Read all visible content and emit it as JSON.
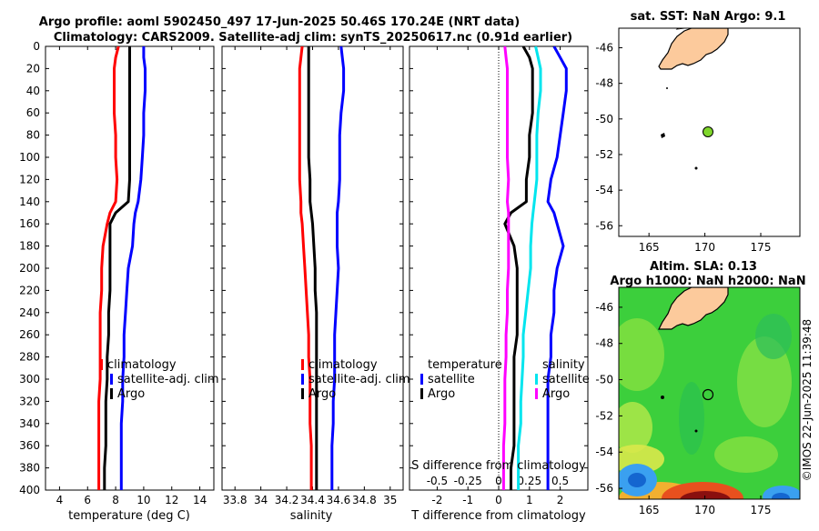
{
  "title": {
    "line1": "Argo profile: aoml 5902450_497 17-Jun-2025 50.46S 170.24E (NRT data)",
    "line2": "Climatology: CARS2009. Satellite-adj clim: synTS_20250617.nc (0.91d earlier)"
  },
  "sst_map": {
    "title": "sat. SST: NaN Argo: 9.1",
    "xticks": [
      "165",
      "170",
      "175"
    ],
    "yticks": [
      "-46",
      "-48",
      "-50",
      "-52",
      "-54",
      "-56"
    ],
    "land_color": "#fcca9c",
    "argo_marker_color": "#7fd62b"
  },
  "sla_map": {
    "title1": "Altim. SLA: 0.13",
    "title2": "Argo h1000: NaN h2000: NaN",
    "xticks": [
      "165",
      "170",
      "175"
    ],
    "yticks": [
      "-46",
      "-48",
      "-50",
      "-52",
      "-54",
      "-56"
    ]
  },
  "watermark": "©IMOS 22-Jun-2025 11:39:48",
  "chart_data": [
    {
      "type": "line",
      "panel": "temperature",
      "xlabel": "temperature (deg C)",
      "ylabel": "",
      "xlim": [
        3,
        15
      ],
      "ylim": [
        400,
        0
      ],
      "xticks": [
        "4",
        "6",
        "8",
        "10",
        "12",
        "14"
      ],
      "xtick_values": [
        4,
        6,
        8,
        10,
        12,
        14
      ],
      "yticks": [
        "0",
        "20",
        "40",
        "60",
        "80",
        "100",
        "120",
        "140",
        "160",
        "180",
        "200",
        "220",
        "240",
        "260",
        "280",
        "300",
        "320",
        "340",
        "360",
        "380",
        "400"
      ],
      "depth": [
        0,
        10,
        20,
        40,
        60,
        80,
        100,
        120,
        140,
        150,
        160,
        180,
        200,
        220,
        240,
        260,
        280,
        300,
        320,
        340,
        360,
        380,
        400
      ],
      "series": [
        {
          "name": "climatology",
          "color": "#ff0000",
          "values": [
            8.2,
            8.0,
            7.9,
            7.9,
            7.9,
            8.0,
            8.0,
            8.1,
            8.0,
            7.6,
            7.4,
            7.1,
            7.0,
            7.0,
            6.9,
            6.9,
            6.9,
            6.9,
            6.8,
            6.8,
            6.8,
            6.8,
            6.8
          ]
        },
        {
          "name": "satellite-adj. clim",
          "color": "#0000ff",
          "values": [
            10.0,
            10.0,
            10.1,
            10.1,
            10.0,
            10.0,
            9.9,
            9.8,
            9.6,
            9.4,
            9.3,
            9.2,
            8.9,
            8.8,
            8.7,
            8.6,
            8.6,
            8.5,
            8.5,
            8.4,
            8.4,
            8.4,
            8.4
          ]
        },
        {
          "name": "Argo",
          "color": "#000000",
          "values": [
            9.0,
            9.0,
            9.0,
            9.0,
            9.0,
            9.0,
            9.0,
            9.0,
            8.9,
            8.0,
            7.6,
            7.6,
            7.6,
            7.6,
            7.5,
            7.5,
            7.4,
            7.4,
            7.3,
            7.3,
            7.3,
            7.2,
            7.2
          ]
        }
      ],
      "legend": [
        "climatology",
        "satellite-adj. clim",
        "Argo"
      ],
      "legend_position": "lower-right"
    },
    {
      "type": "line",
      "panel": "salinity",
      "xlabel": "salinity",
      "xlim": [
        33.7,
        35.1
      ],
      "ylim": [
        400,
        0
      ],
      "xticks": [
        "33.8",
        "34",
        "34.2",
        "34.4",
        "34.6",
        "34.8",
        "35"
      ],
      "xtick_values": [
        33.8,
        34.0,
        34.2,
        34.4,
        34.6,
        34.8,
        35.0
      ],
      "depth": [
        0,
        10,
        20,
        40,
        60,
        80,
        100,
        120,
        140,
        150,
        160,
        180,
        200,
        220,
        240,
        260,
        280,
        300,
        320,
        340,
        360,
        380,
        400
      ],
      "series": [
        {
          "name": "climatology",
          "color": "#ff0000",
          "values": [
            34.32,
            34.31,
            34.3,
            34.3,
            34.3,
            34.3,
            34.3,
            34.3,
            34.31,
            34.31,
            34.32,
            34.33,
            34.34,
            34.35,
            34.36,
            34.37,
            34.37,
            34.38,
            34.38,
            34.38,
            34.39,
            34.39,
            34.39
          ]
        },
        {
          "name": "satellite-adj. clim",
          "color": "#0000ff",
          "values": [
            34.62,
            34.63,
            34.64,
            34.64,
            34.62,
            34.61,
            34.61,
            34.61,
            34.6,
            34.59,
            34.59,
            34.59,
            34.6,
            34.59,
            34.58,
            34.57,
            34.57,
            34.57,
            34.56,
            34.56,
            34.55,
            34.55,
            34.55
          ]
        },
        {
          "name": "Argo",
          "color": "#000000",
          "values": [
            34.37,
            34.37,
            34.37,
            34.37,
            34.37,
            34.37,
            34.37,
            34.38,
            34.38,
            34.39,
            34.4,
            34.41,
            34.42,
            34.42,
            34.43,
            34.43,
            34.43,
            34.43,
            34.43,
            34.43,
            34.43,
            34.43,
            34.43
          ]
        }
      ],
      "legend": [
        "climatology",
        "satellite-adj. clim",
        "Argo"
      ],
      "legend_position": "lower-right"
    },
    {
      "type": "line",
      "panel": "difference",
      "xlabel": "T difference from climatology",
      "top_axis_label": "S difference from climatology",
      "xlim": [
        -2.9,
        2.9
      ],
      "ylim": [
        400,
        0
      ],
      "xticks": [
        "-2",
        "-1",
        "0",
        "1",
        "2"
      ],
      "xtick_values": [
        -2,
        -1,
        0,
        1,
        2
      ],
      "s_xlim": [
        -0.725,
        0.725
      ],
      "s_xticks": [
        "-0.5",
        "-0.25",
        "0",
        "0.25",
        "0.5"
      ],
      "s_xtick_values": [
        -0.5,
        -0.25,
        0,
        0.25,
        0.5
      ],
      "depth": [
        0,
        10,
        20,
        40,
        60,
        80,
        100,
        120,
        140,
        150,
        160,
        180,
        200,
        220,
        240,
        260,
        280,
        300,
        320,
        340,
        360,
        380,
        400
      ],
      "series": [
        {
          "name": "T satellite",
          "group": "temperature",
          "color": "#0000ff",
          "values": [
            1.8,
            2.0,
            2.2,
            2.2,
            2.1,
            2.0,
            1.9,
            1.7,
            1.6,
            1.8,
            1.9,
            2.1,
            1.9,
            1.8,
            1.8,
            1.7,
            1.7,
            1.6,
            1.6,
            1.6,
            1.6,
            1.6,
            1.6
          ]
        },
        {
          "name": "T Argo",
          "group": "temperature",
          "color": "#000000",
          "values": [
            0.8,
            1.0,
            1.1,
            1.1,
            1.1,
            1.0,
            1.0,
            0.9,
            0.9,
            0.4,
            0.2,
            0.5,
            0.6,
            0.6,
            0.6,
            0.6,
            0.5,
            0.5,
            0.5,
            0.5,
            0.5,
            0.4,
            0.4
          ]
        },
        {
          "name": "S satellite",
          "group": "salinity",
          "color": "#00e5ee",
          "values": [
            0.3,
            0.32,
            0.34,
            0.34,
            0.32,
            0.31,
            0.31,
            0.31,
            0.29,
            0.28,
            0.27,
            0.26,
            0.26,
            0.24,
            0.22,
            0.2,
            0.2,
            0.19,
            0.18,
            0.18,
            0.16,
            0.16,
            0.16
          ]
        },
        {
          "name": "S Argo",
          "group": "salinity",
          "color": "#ff00ff",
          "values": [
            0.05,
            0.06,
            0.07,
            0.07,
            0.07,
            0.07,
            0.07,
            0.08,
            0.07,
            0.08,
            0.08,
            0.08,
            0.08,
            0.07,
            0.07,
            0.06,
            0.06,
            0.05,
            0.05,
            0.05,
            0.04,
            0.04,
            0.04
          ]
        }
      ],
      "legend_temperature_title": "temperature",
      "legend_salinity_title": "salinity",
      "legend_items": {
        "t_sat": "satellite",
        "t_argo": "Argo",
        "s_sat": "satellite",
        "s_argo": "Argo"
      }
    }
  ]
}
